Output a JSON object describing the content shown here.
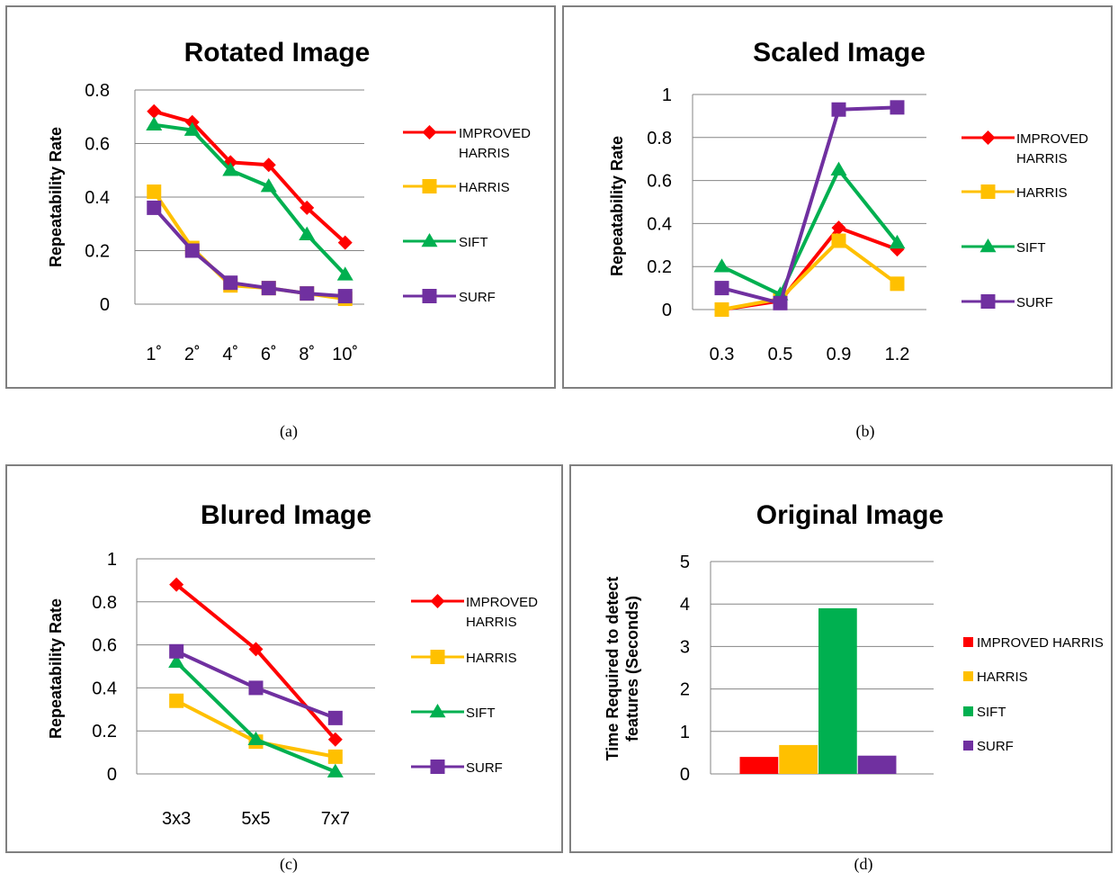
{
  "captions": [
    "(a)",
    "(b)",
    "(c)",
    "(d)"
  ],
  "chart_data": [
    {
      "type": "line",
      "title": "Rotated Image",
      "ylabel": "Repeatability Rate",
      "xlabel": "",
      "categories": [
        "1˚",
        "2˚",
        "4˚",
        "6˚",
        "8˚",
        "10˚"
      ],
      "ylim": [
        0,
        0.8
      ],
      "yticks": [
        "0",
        "0.2",
        "0.4",
        "0.6",
        "0.8"
      ],
      "grid": true,
      "legend_position": "right",
      "series": [
        {
          "name": "IMPROVED HARRIS",
          "legend_lines": [
            "IMPROVED",
            "HARRIS"
          ],
          "color": "#ff0000",
          "marker": "diamond",
          "values": [
            0.72,
            0.68,
            0.53,
            0.52,
            0.36,
            0.23
          ]
        },
        {
          "name": "HARRIS",
          "legend_lines": [
            "HARRIS"
          ],
          "color": "#ffc000",
          "marker": "square",
          "values": [
            0.42,
            0.21,
            0.07,
            0.06,
            0.04,
            0.02
          ]
        },
        {
          "name": "SIFT",
          "legend_lines": [
            "SIFT"
          ],
          "color": "#00b050",
          "marker": "triangle",
          "values": [
            0.67,
            0.65,
            0.5,
            0.44,
            0.26,
            0.11
          ]
        },
        {
          "name": "SURF",
          "legend_lines": [
            "SURF"
          ],
          "color": "#7030a0",
          "marker": "square",
          "values": [
            0.36,
            0.2,
            0.08,
            0.06,
            0.04,
            0.03
          ]
        }
      ]
    },
    {
      "type": "line",
      "title": "Scaled Image",
      "ylabel": "Repeatability Rate",
      "xlabel": "",
      "categories": [
        "0.3",
        "0.5",
        "0.9",
        "1.2"
      ],
      "ylim": [
        0,
        1
      ],
      "yticks": [
        "0",
        "0.2",
        "0.4",
        "0.6",
        "0.8",
        "1"
      ],
      "grid": true,
      "legend_position": "right",
      "series": [
        {
          "name": "IMPROVED HARRIS",
          "legend_lines": [
            "IMPROVED",
            "HARRIS"
          ],
          "color": "#ff0000",
          "marker": "diamond",
          "values": [
            0.0,
            0.04,
            0.38,
            0.28
          ]
        },
        {
          "name": "HARRIS",
          "legend_lines": [
            "HARRIS"
          ],
          "color": "#ffc000",
          "marker": "square",
          "values": [
            0.0,
            0.05,
            0.32,
            0.12
          ]
        },
        {
          "name": "SIFT",
          "legend_lines": [
            "SIFT"
          ],
          "color": "#00b050",
          "marker": "triangle",
          "values": [
            0.2,
            0.07,
            0.65,
            0.31
          ]
        },
        {
          "name": "SURF",
          "legend_lines": [
            "SURF"
          ],
          "color": "#7030a0",
          "marker": "square",
          "values": [
            0.1,
            0.03,
            0.93,
            0.94
          ]
        }
      ]
    },
    {
      "type": "line",
      "title": "Blured Image",
      "ylabel": "Repeatability Rate",
      "xlabel": "",
      "categories": [
        "3x3",
        "5x5",
        "7x7"
      ],
      "ylim": [
        0,
        1
      ],
      "yticks": [
        "0",
        "0.2",
        "0.4",
        "0.6",
        "0.8",
        "1"
      ],
      "grid": true,
      "legend_position": "right",
      "series": [
        {
          "name": "IMPROVED HARRIS",
          "legend_lines": [
            "IMPROVED",
            "HARRIS"
          ],
          "color": "#ff0000",
          "marker": "diamond",
          "values": [
            0.88,
            0.58,
            0.16
          ]
        },
        {
          "name": "HARRIS",
          "legend_lines": [
            "HARRIS"
          ],
          "color": "#ffc000",
          "marker": "square",
          "values": [
            0.34,
            0.15,
            0.08
          ]
        },
        {
          "name": "SIFT",
          "legend_lines": [
            "SIFT"
          ],
          "color": "#00b050",
          "marker": "triangle",
          "values": [
            0.52,
            0.16,
            0.01
          ]
        },
        {
          "name": "SURF",
          "legend_lines": [
            "SURF"
          ],
          "color": "#7030a0",
          "marker": "square",
          "values": [
            0.57,
            0.4,
            0.26
          ]
        }
      ]
    },
    {
      "type": "bar",
      "title": "Original Image",
      "ylabel": "Time Required  to detect features (Seconds)",
      "ylabel_lines": [
        "Time Required  to detect",
        "features (Seconds)"
      ],
      "xlabel": "",
      "categories": [
        ""
      ],
      "ylim": [
        0,
        5
      ],
      "yticks": [
        "0",
        "1",
        "2",
        "3",
        "4",
        "5"
      ],
      "grid": true,
      "legend_position": "right",
      "series": [
        {
          "name": "IMPROVED HARRIS",
          "color": "#ff0000",
          "values": [
            0.4
          ]
        },
        {
          "name": "HARRIS",
          "color": "#ffc000",
          "values": [
            0.68
          ]
        },
        {
          "name": "SIFT",
          "color": "#00b050",
          "values": [
            3.9
          ]
        },
        {
          "name": "SURF",
          "color": "#7030a0",
          "values": [
            0.43
          ]
        }
      ]
    }
  ]
}
